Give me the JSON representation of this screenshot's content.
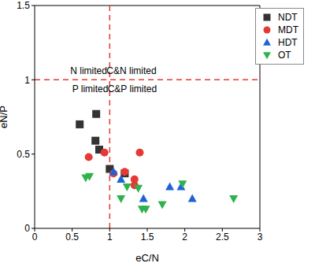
{
  "chart_data": {
    "type": "scatter",
    "x_label": "eC/N",
    "y_label": "eN/P",
    "xlim": [
      0,
      3
    ],
    "ylim": [
      0,
      1.5
    ],
    "xticks": [
      0,
      0.5,
      1,
      1.5,
      2,
      2.5,
      3
    ],
    "yticks": [
      0,
      0.5,
      1,
      1.5
    ],
    "grid": false,
    "legend": "upper right",
    "reference_lines": [
      {
        "axis": "x",
        "value": 1,
        "color": "#e8392f",
        "line_style": "dashed"
      },
      {
        "axis": "y",
        "value": 1,
        "color": "#e8392f",
        "line_style": "dashed"
      }
    ],
    "annotations": [
      {
        "text": "N limited",
        "x": 0.72,
        "y": 1.06
      },
      {
        "text": "C&N limited",
        "x": 1.29,
        "y": 1.06
      },
      {
        "text": "P limited",
        "x": 0.74,
        "y": 0.94
      },
      {
        "text": "C&P limited",
        "x": 1.3,
        "y": 0.94
      }
    ],
    "series": [
      {
        "name": "NDT",
        "color": "#333333",
        "marker": "square",
        "x": [
          0.6,
          0.82,
          0.81,
          0.86,
          1.0,
          1.2
        ],
        "values": [
          0.7,
          0.77,
          0.59,
          0.53,
          0.4,
          0.37
        ]
      },
      {
        "name": "MDT",
        "color": "#e53935",
        "marker": "circle",
        "x": [
          0.72,
          0.93,
          1.05,
          1.2,
          1.33,
          1.33,
          1.4
        ],
        "values": [
          0.48,
          0.51,
          0.37,
          0.38,
          0.33,
          0.29,
          0.51
        ]
      },
      {
        "name": "HDT",
        "color": "#1e63d6",
        "marker": "triangle",
        "x": [
          1.05,
          1.15,
          1.45,
          1.8,
          1.95,
          2.1
        ],
        "values": [
          0.38,
          0.33,
          0.2,
          0.28,
          0.28,
          0.2
        ]
      },
      {
        "name": "OT",
        "color": "#2eb24b",
        "marker": "triangle-down",
        "x": [
          0.68,
          0.73,
          1.15,
          1.23,
          1.38,
          1.43,
          1.48,
          1.7,
          1.97,
          2.65
        ],
        "values": [
          0.34,
          0.35,
          0.2,
          0.28,
          0.27,
          0.13,
          0.13,
          0.16,
          0.3,
          0.2
        ]
      }
    ]
  }
}
